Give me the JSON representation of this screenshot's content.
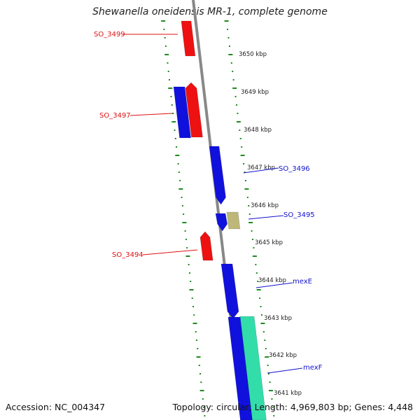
{
  "title": "Shewanella oneidensis MR-1, complete genome",
  "footer": {
    "accession": "Accession: NC_004347",
    "stats": "Topology: circular; Length: 4,969,803 bp; Genes: 4,448"
  },
  "colors": {
    "forward_gene": "#ee1111",
    "reverse_gene": "#1111dd",
    "other_gene": "#bdb77a",
    "rna_gene": "#33ddaa",
    "backbone": "#888888",
    "dotted_ring": "#1f8a1f",
    "left_label": "#dd1111",
    "right_label": "#1111cc"
  },
  "scale": {
    "unit": "kbp",
    "ticks": [
      {
        "label": "3650 kbp"
      },
      {
        "label": "3649 kbp"
      },
      {
        "label": "3648 kbp"
      },
      {
        "label": "3647 kbp"
      },
      {
        "label": "3646 kbp"
      },
      {
        "label": "3645 kbp"
      },
      {
        "label": "3644 kbp"
      },
      {
        "label": "3643 kbp"
      },
      {
        "label": "3642 kbp"
      },
      {
        "label": "3641 kbp"
      }
    ]
  },
  "genes": [
    {
      "name": "SO_3499",
      "strand": "forward",
      "kind": "forward_gene"
    },
    {
      "name": "SO_3497",
      "strand": "forward",
      "kind": "forward_gene"
    },
    {
      "name": "",
      "strand": "reverse",
      "kind": "reverse_gene"
    },
    {
      "name": "SO_3496",
      "strand": "reverse",
      "kind": "reverse_gene"
    },
    {
      "name": "SO_3495",
      "strand": "reverse",
      "kind": "reverse_gene"
    },
    {
      "name": "",
      "strand": "reverse",
      "kind": "other_gene"
    },
    {
      "name": "SO_3494",
      "strand": "forward",
      "kind": "forward_gene"
    },
    {
      "name": "mexE",
      "strand": "reverse",
      "kind": "reverse_gene"
    },
    {
      "name": "mexF",
      "strand": "reverse",
      "kind": "reverse_gene"
    },
    {
      "name": "",
      "strand": "reverse",
      "kind": "rna_gene"
    }
  ]
}
